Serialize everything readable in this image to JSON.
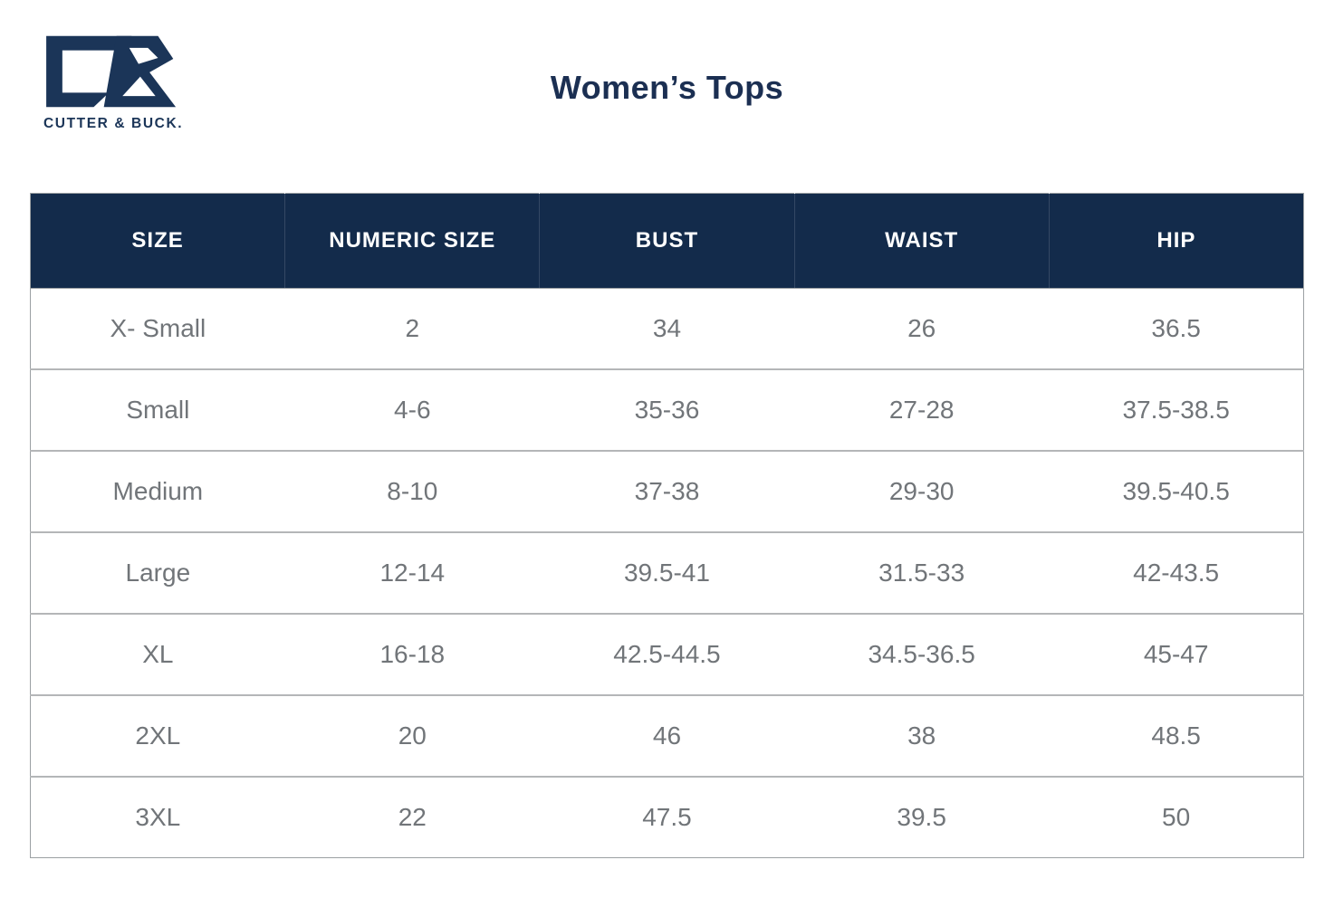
{
  "brand": {
    "wordmark": "CUTTER & BUCK.",
    "logo_icon": "cutter-and-buck-cb-monogram",
    "logo_color": "#1b3558"
  },
  "title": "Women’s Tops",
  "table": {
    "headers": [
      "SIZE",
      "NUMERIC SIZE",
      "BUST",
      "WAIST",
      "HIP"
    ],
    "rows": [
      [
        "X- Small",
        "2",
        "34",
        "26",
        "36.5"
      ],
      [
        "Small",
        "4-6",
        "35-36",
        "27-28",
        "37.5-38.5"
      ],
      [
        "Medium",
        "8-10",
        "37-38",
        "29-30",
        "39.5-40.5"
      ],
      [
        "Large",
        "12-14",
        "39.5-41",
        "31.5-33",
        "42-43.5"
      ],
      [
        "XL",
        "16-18",
        "42.5-44.5",
        "34.5-36.5",
        "45-47"
      ],
      [
        "2XL",
        "20",
        "46",
        "38",
        "48.5"
      ],
      [
        "3XL",
        "22",
        "47.5",
        "39.5",
        "50"
      ]
    ]
  },
  "colors": {
    "header_background": "#132b4b",
    "header_text": "#ffffff",
    "body_text": "#717579",
    "row_divider": "#b4b6b8",
    "outer_border": "#9ba0a3",
    "title_text": "#1b2f52",
    "logo_navy": "#1b3558"
  }
}
